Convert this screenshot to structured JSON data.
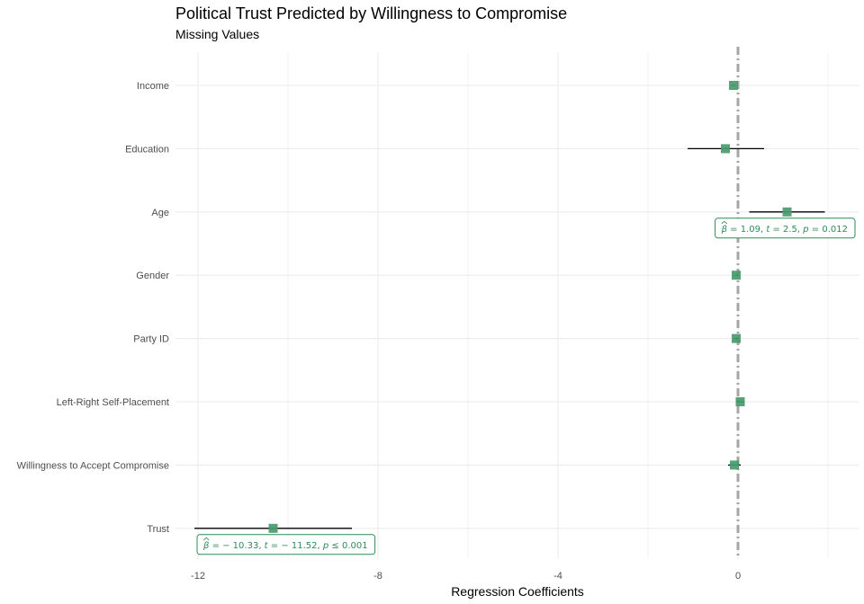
{
  "chart_data": {
    "type": "scatter",
    "title": "Political Trust Predicted by Willingness to Compromise",
    "subtitle": "Missing Values",
    "xlabel": "Regression Coefficients",
    "ylabel": "",
    "xlim": [
      -12.5,
      2.7
    ],
    "x_ticks": [
      -12,
      -8,
      -4,
      0
    ],
    "x_tick_labels": [
      "-12",
      "-8",
      "-4",
      "0"
    ],
    "reference_line": 0,
    "grid": true,
    "colors": {
      "point": "#4a9a6e",
      "errorbar": "#000000",
      "reference": "#a6a6a6",
      "annotation": "#2e8b57",
      "grid": "#ebebeb"
    },
    "terms": [
      {
        "label": "Income",
        "estimate": -0.1,
        "ci": [
          -0.15,
          -0.05
        ]
      },
      {
        "label": "Education",
        "estimate": -0.28,
        "ci": [
          -1.12,
          0.58
        ]
      },
      {
        "label": "Age",
        "estimate": 1.09,
        "ci": [
          0.25,
          1.93
        ],
        "annotation": {
          "beta": "1.09",
          "t": "2.5",
          "p": "= 0.012"
        }
      },
      {
        "label": "Gender",
        "estimate": -0.04,
        "ci": [
          -0.09,
          0.01
        ]
      },
      {
        "label": "Party ID",
        "estimate": -0.04,
        "ci": [
          -0.09,
          0.01
        ]
      },
      {
        "label": "Left-Right Self-Placement",
        "estimate": 0.05,
        "ci": [
          -0.05,
          0.15
        ]
      },
      {
        "label": "Willingness to Accept Compromise",
        "estimate": -0.08,
        "ci": [
          -0.22,
          0.06
        ]
      },
      {
        "label": "Trust",
        "estimate": -10.33,
        "ci": [
          -12.08,
          -8.58
        ],
        "annotation": {
          "beta": "− 10.33",
          "t": "− 11.52",
          "p": "≤ 0.001"
        }
      }
    ]
  }
}
